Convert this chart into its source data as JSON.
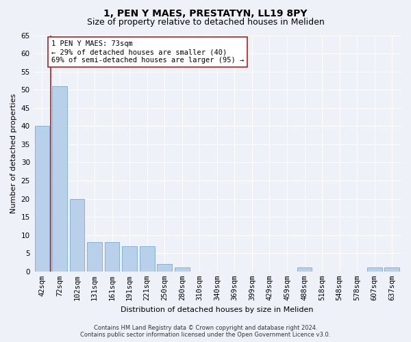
{
  "title1": "1, PEN Y MAES, PRESTATYN, LL19 8PY",
  "title2": "Size of property relative to detached houses in Meliden",
  "xlabel": "Distribution of detached houses by size in Meliden",
  "ylabel": "Number of detached properties",
  "categories": [
    "42sqm",
    "72sqm",
    "102sqm",
    "131sqm",
    "161sqm",
    "191sqm",
    "221sqm",
    "250sqm",
    "280sqm",
    "310sqm",
    "340sqm",
    "369sqm",
    "399sqm",
    "429sqm",
    "459sqm",
    "488sqm",
    "518sqm",
    "548sqm",
    "578sqm",
    "607sqm",
    "637sqm"
  ],
  "values": [
    40,
    51,
    20,
    8,
    8,
    7,
    7,
    2,
    1,
    0,
    0,
    0,
    0,
    0,
    0,
    1,
    0,
    0,
    0,
    1,
    1
  ],
  "bar_color": "#b8d0ea",
  "bar_edge_color": "#7aaace",
  "vline_x": 0.5,
  "vline_color": "#aa2222",
  "annotation_text": "1 PEN Y MAES: 73sqm\n← 29% of detached houses are smaller (40)\n69% of semi-detached houses are larger (95) →",
  "annotation_box_color": "white",
  "annotation_box_edge_color": "#aa2222",
  "ylim": [
    0,
    65
  ],
  "yticks": [
    0,
    5,
    10,
    15,
    20,
    25,
    30,
    35,
    40,
    45,
    50,
    55,
    60,
    65
  ],
  "footer1": "Contains HM Land Registry data © Crown copyright and database right 2024.",
  "footer2": "Contains public sector information licensed under the Open Government Licence v3.0.",
  "background_color": "#eef2f8",
  "grid_color": "white",
  "title_fontsize": 10,
  "subtitle_fontsize": 9,
  "axis_label_fontsize": 8,
  "tick_fontsize": 7.5,
  "annotation_fontsize": 7.5,
  "footer_fontsize": 6
}
